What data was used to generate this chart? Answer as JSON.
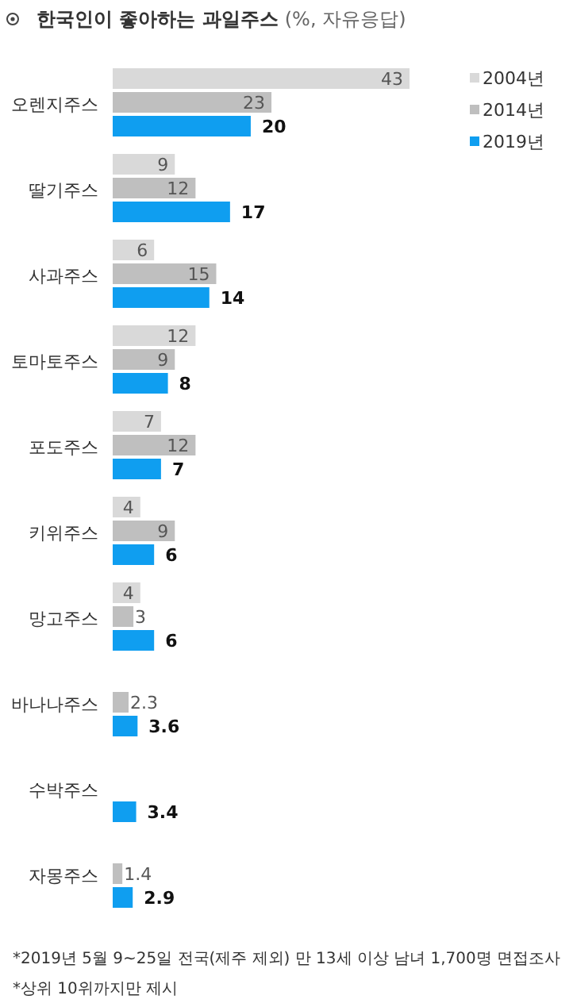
{
  "chart_data": {
    "type": "bar",
    "orientation": "horizontal",
    "title": "한국인이 좋아하는 과일주스",
    "subtitle": "(%, 자유응답)",
    "categories": [
      "오렌지주스",
      "딸기주스",
      "사과주스",
      "토마토주스",
      "포도주스",
      "키위주스",
      "망고주스",
      "바나나주스",
      "수박주스",
      "자몽주스"
    ],
    "series": [
      {
        "name": "2004년",
        "color": "#d9d9d9",
        "values": [
          43,
          9,
          6,
          12,
          7,
          4,
          4,
          null,
          null,
          null
        ]
      },
      {
        "name": "2014년",
        "color": "#bfbfbf",
        "values": [
          23,
          12,
          15,
          9,
          12,
          9,
          3,
          2.3,
          null,
          1.4
        ]
      },
      {
        "name": "2019년",
        "color": "#0f9ef0",
        "values": [
          20,
          17,
          14,
          8,
          7,
          6,
          6,
          3.6,
          3.4,
          2.9
        ]
      }
    ],
    "data_labels": true,
    "legend": "top right",
    "annotations": [
      "*2019년 5월 9~25일 전국(제주 제외) 만 13세 이상 남녀 1,700명 면접조사",
      "*상위 10위까지만 제시"
    ]
  }
}
